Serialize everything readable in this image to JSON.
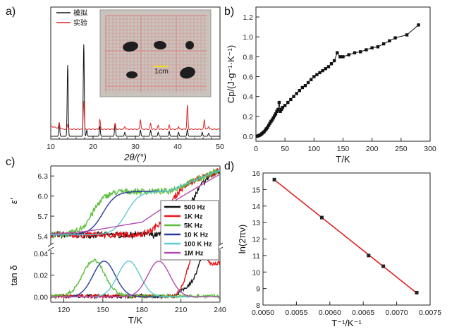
{
  "panels": {
    "a": {
      "label": "a)"
    },
    "b": {
      "label": "b)"
    },
    "c": {
      "label": "c)"
    },
    "d": {
      "label": "d)"
    }
  },
  "chart_data": [
    {
      "id": "a",
      "type": "line",
      "xlabel": "2θ/(°)",
      "xlim": [
        10,
        50
      ],
      "xticks": [
        10,
        20,
        30,
        40,
        50
      ],
      "legend": [
        "模拟",
        "实验"
      ],
      "legend_position": "top-left",
      "series": [
        {
          "name": "模拟",
          "color": "#111111",
          "peaks": [
            [
              12.0,
              0.14
            ],
            [
              14.0,
              0.72
            ],
            [
              17.8,
              0.93
            ],
            [
              18.5,
              0.06
            ],
            [
              21.6,
              0.1
            ],
            [
              25.2,
              0.13
            ],
            [
              27.5,
              0.04
            ],
            [
              31.2,
              0.06
            ],
            [
              33.6,
              0.06
            ],
            [
              35.4,
              0.04
            ],
            [
              38.0,
              0.05
            ],
            [
              40.2,
              0.04
            ],
            [
              42.3,
              0.07
            ],
            [
              45.8,
              0.04
            ],
            [
              47.3,
              0.03
            ]
          ]
        },
        {
          "name": "实验",
          "color": "#dd2222",
          "peaks": [
            [
              12.0,
              0.05
            ],
            [
              14.0,
              0.05
            ],
            [
              17.8,
              0.3
            ],
            [
              21.6,
              0.1
            ],
            [
              25.2,
              0.06
            ],
            [
              27.5,
              0.03
            ],
            [
              31.2,
              0.1
            ],
            [
              33.6,
              0.06
            ],
            [
              35.4,
              0.04
            ],
            [
              38.0,
              0.04
            ],
            [
              40.2,
              0.03
            ],
            [
              42.3,
              0.25
            ],
            [
              46.3,
              0.1
            ],
            [
              47.3,
              0.03
            ]
          ]
        }
      ],
      "inset": {
        "scale_label": "1cm",
        "crystal_count": 5
      }
    },
    {
      "id": "b",
      "type": "line",
      "xlabel": "T/K",
      "ylabel": "Cp/(J·g⁻¹·K⁻¹)",
      "xlim": [
        0,
        300
      ],
      "ylim": [
        -0.05,
        1.3
      ],
      "xticks": [
        0,
        50,
        100,
        150,
        200,
        250,
        300
      ],
      "yticks": [
        "0.0",
        "0.2",
        "0.4",
        "0.6",
        "0.8",
        "1.0",
        "1.2"
      ],
      "x": [
        2,
        4,
        6,
        8,
        10,
        12,
        14,
        16,
        18,
        20,
        22,
        24,
        26,
        28,
        30,
        32,
        34,
        36,
        38,
        40,
        42,
        44,
        46,
        50,
        55,
        60,
        65,
        70,
        75,
        80,
        85,
        90,
        95,
        100,
        105,
        110,
        115,
        120,
        125,
        130,
        135,
        140,
        145,
        150,
        160,
        170,
        180,
        190,
        200,
        210,
        220,
        230,
        240,
        260,
        280
      ],
      "y": [
        0.0,
        0.005,
        0.01,
        0.015,
        0.025,
        0.035,
        0.045,
        0.06,
        0.075,
        0.09,
        0.11,
        0.13,
        0.15,
        0.165,
        0.185,
        0.205,
        0.225,
        0.25,
        0.27,
        0.34,
        0.25,
        0.27,
        0.29,
        0.31,
        0.34,
        0.37,
        0.4,
        0.43,
        0.46,
        0.49,
        0.51,
        0.54,
        0.57,
        0.6,
        0.62,
        0.64,
        0.66,
        0.68,
        0.7,
        0.73,
        0.76,
        0.84,
        0.8,
        0.8,
        0.82,
        0.84,
        0.85,
        0.87,
        0.89,
        0.9,
        0.93,
        0.96,
        0.99,
        1.02,
        1.12
      ]
    },
    {
      "id": "c",
      "type": "line",
      "xlabel": "T/K",
      "xlim": [
        110,
        240
      ],
      "xticks": [
        120,
        150,
        180,
        210,
        240
      ],
      "upper": {
        "ylabel": "ε'",
        "ylim": [
          5.3,
          6.45
        ],
        "yticks": [
          "5.4",
          "5.7",
          "6.0",
          "6.3"
        ]
      },
      "lower": {
        "ylabel": "tan δ",
        "ylim": [
          -0.005,
          0.042
        ],
        "yticks": [
          "0.00",
          "0.02",
          "0.04"
        ]
      },
      "legend_position": "center-right",
      "series": [
        {
          "name": "500 Hz",
          "color": "#111111",
          "eps_T": 218,
          "tan_peak_T": 232,
          "noisy": true
        },
        {
          "name": "1K Hz",
          "color": "#e8141a",
          "eps_T": 198,
          "tan_peak_T": 222,
          "noisy": true
        },
        {
          "name": "5K Hz",
          "color": "#5cbe3c",
          "eps_T": 142,
          "tan_peak_T": 143,
          "noisy": true
        },
        {
          "name": "10 K Hz",
          "color": "#2b3a9e",
          "eps_T": 150,
          "tan_peak_T": 151,
          "noisy": false
        },
        {
          "name": "100 K Hz",
          "color": "#5ecad4",
          "eps_T": 168,
          "tan_peak_T": 170,
          "noisy": false
        },
        {
          "name": "1M Hz",
          "color": "#b24cae",
          "eps_T": 205,
          "tan_peak_T": 193,
          "noisy": false
        }
      ]
    },
    {
      "id": "d",
      "type": "scatter",
      "xlabel": "T⁻¹/K⁻¹",
      "ylabel": "ln(2πν)",
      "xlim": [
        0.005,
        0.0075
      ],
      "ylim": [
        8,
        16
      ],
      "xticks": [
        "0.0050",
        "0.0055",
        "0.0060",
        "0.0065",
        "0.0070",
        "0.0075"
      ],
      "yticks": [
        "8",
        "9",
        "10",
        "11",
        "12",
        "13",
        "14",
        "15",
        "16"
      ],
      "x": [
        0.00517,
        0.00588,
        0.00658,
        0.0068,
        0.0073
      ],
      "y": [
        15.6,
        13.3,
        11.0,
        10.35,
        8.75
      ],
      "fit_color": "#e02020"
    }
  ]
}
